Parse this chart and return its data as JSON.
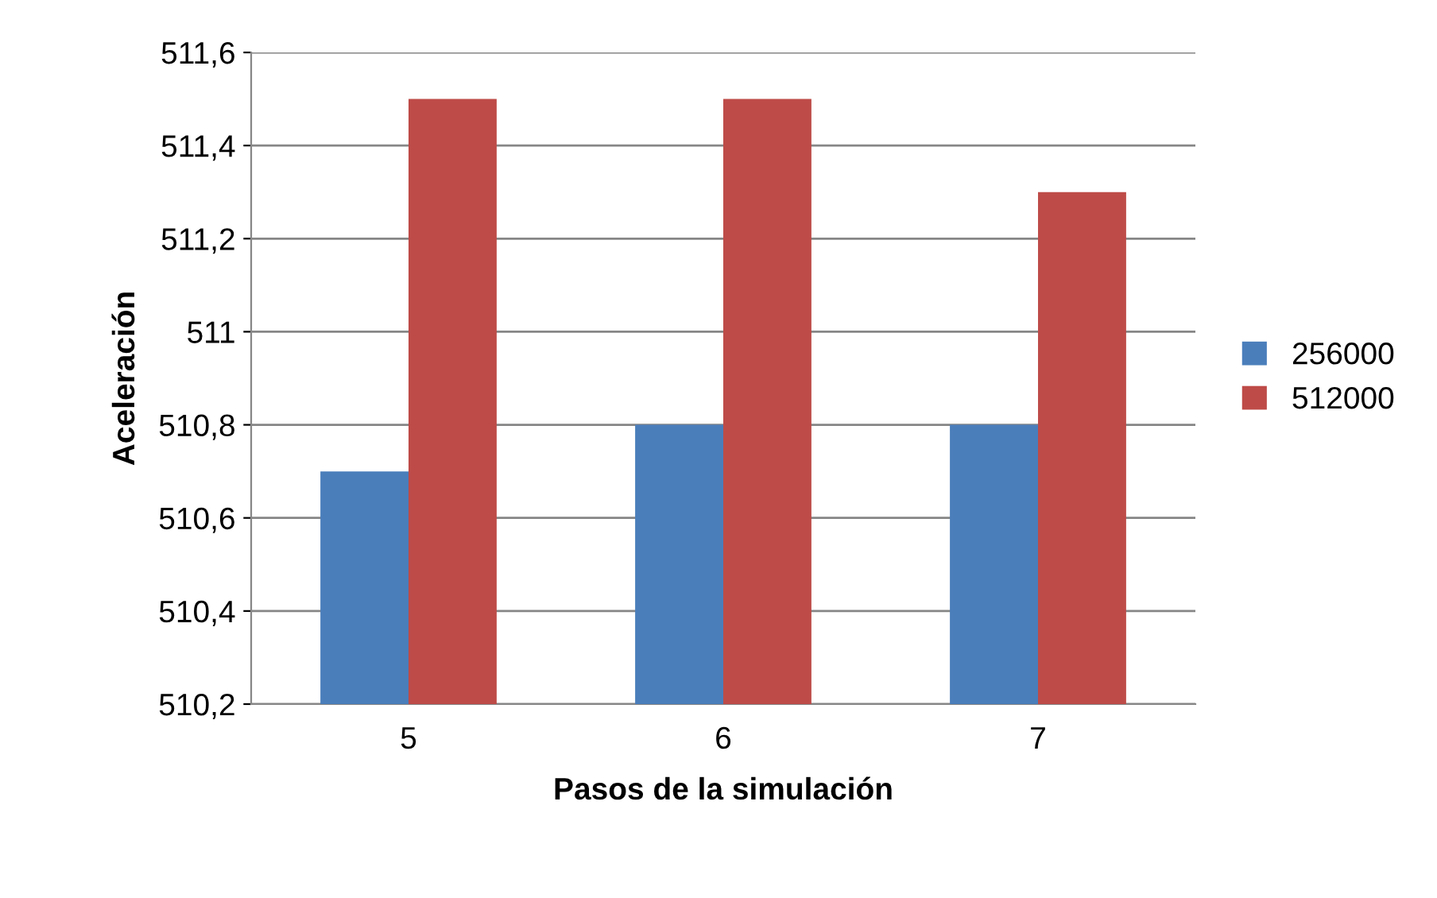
{
  "chart_data": {
    "type": "bar",
    "xlabel": "Pasos de la simulación",
    "ylabel": "Aceleración",
    "categories": [
      "5",
      "6",
      "7"
    ],
    "series": [
      {
        "name": "256000",
        "color": "#4a7ebb",
        "values": [
          510.7,
          510.8,
          510.8
        ]
      },
      {
        "name": "512000",
        "color": "#be4b48",
        "values": [
          511.5,
          511.5,
          511.3
        ]
      }
    ],
    "ylim": [
      510.2,
      511.6
    ],
    "yticks": [
      {
        "value": 510.2,
        "label": "510,2"
      },
      {
        "value": 510.4,
        "label": "510,4"
      },
      {
        "value": 510.6,
        "label": "510,6"
      },
      {
        "value": 510.8,
        "label": "510,8"
      },
      511,
      {
        "value": 511.2,
        "label": "511,2"
      },
      {
        "value": 511.4,
        "label": "511,4"
      },
      {
        "value": 511.6,
        "label": "511,6"
      }
    ],
    "grid": "y",
    "legend": "right"
  }
}
